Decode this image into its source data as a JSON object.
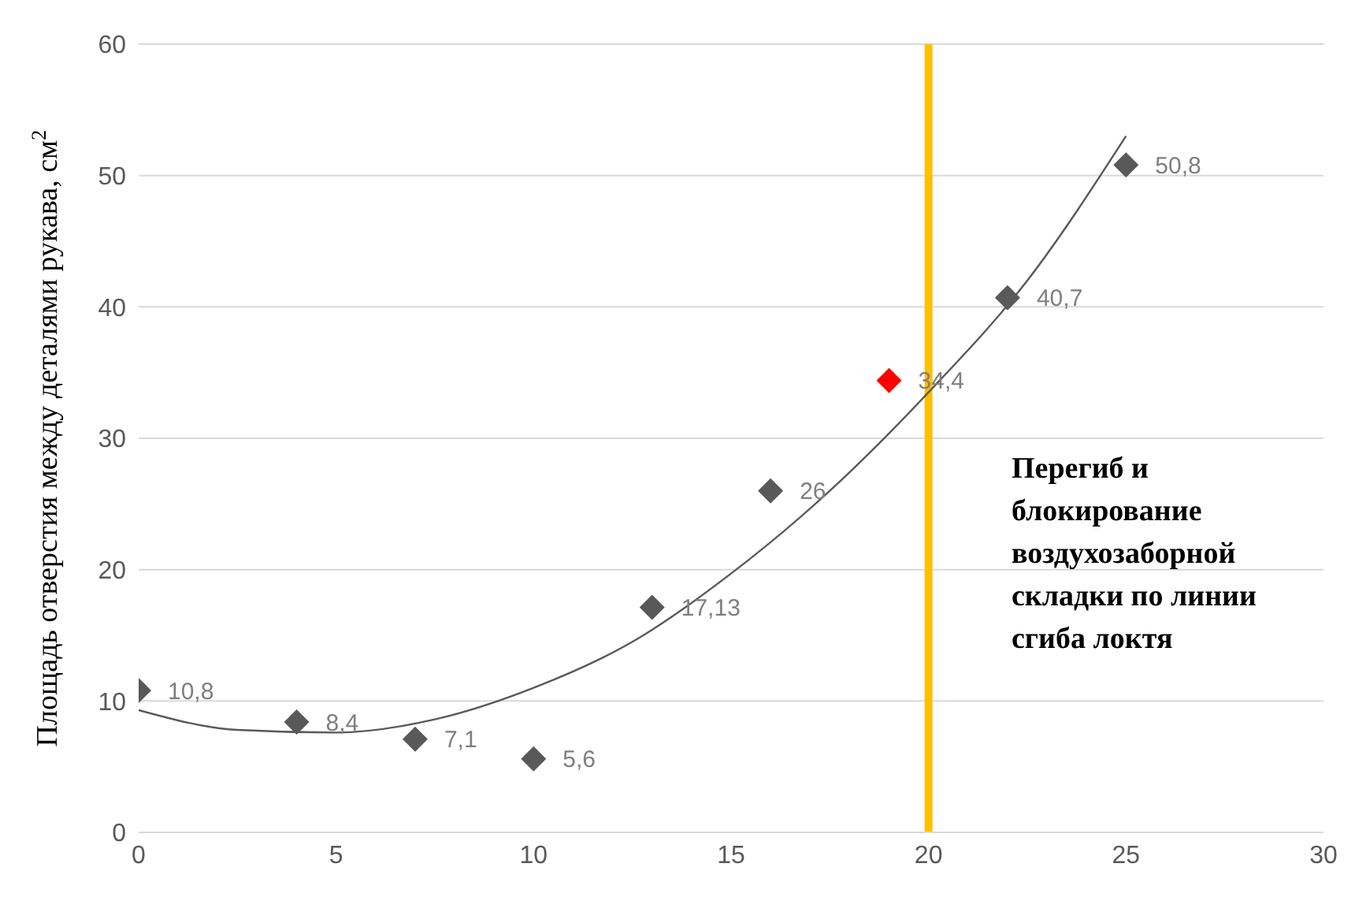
{
  "chart_data": {
    "type": "scatter",
    "ylabel": "Площадь отверстия между деталями рукава, см$^{2}$",
    "x": [
      0,
      4,
      7,
      10,
      13,
      16,
      19,
      22,
      25
    ],
    "series": [
      {
        "color": "#595959",
        "colors": [
          "#595959",
          "#595959",
          "#595959",
          "#595959",
          "#595959",
          "#595959",
          "#ff0000",
          "#595959",
          "#595959"
        ],
        "values": [
          10.8,
          8.4,
          7.1,
          5.6,
          17.13,
          26,
          34.4,
          40.7,
          50.8
        ],
        "value_labels": [
          "10,8",
          "8,4",
          "7,1",
          "5,6",
          "17,13",
          "26",
          "34,4",
          "40,7",
          "50,8"
        ]
      },
      {
        "type": "line",
        "color": "#595959",
        "x": [
          0,
          2.5,
          5,
          7.5,
          10,
          12.5,
          15,
          17.5,
          20,
          22.5,
          25
        ],
        "values": [
          9.3,
          7.8,
          7.6,
          8.6,
          11,
          14.5,
          19.7,
          26,
          33.5,
          42,
          53
        ],
        "marker": "none"
      }
    ],
    "xlim": [
      0,
      30
    ],
    "xticks": [
      0,
      5,
      10,
      15,
      20,
      25,
      30
    ],
    "ylim": [
      0,
      60
    ],
    "yticks": [
      0,
      10,
      20,
      30,
      40,
      50,
      60
    ],
    "grid": "y",
    "marker": "diamond",
    "legend": false,
    "ref_lines": [
      {
        "axis": "x",
        "value": 20,
        "color": "#ffc000"
      }
    ],
    "annotations": [
      "Перегиб и блокирование воздухозаборной складки по линии сгиба локтя"
    ]
  }
}
